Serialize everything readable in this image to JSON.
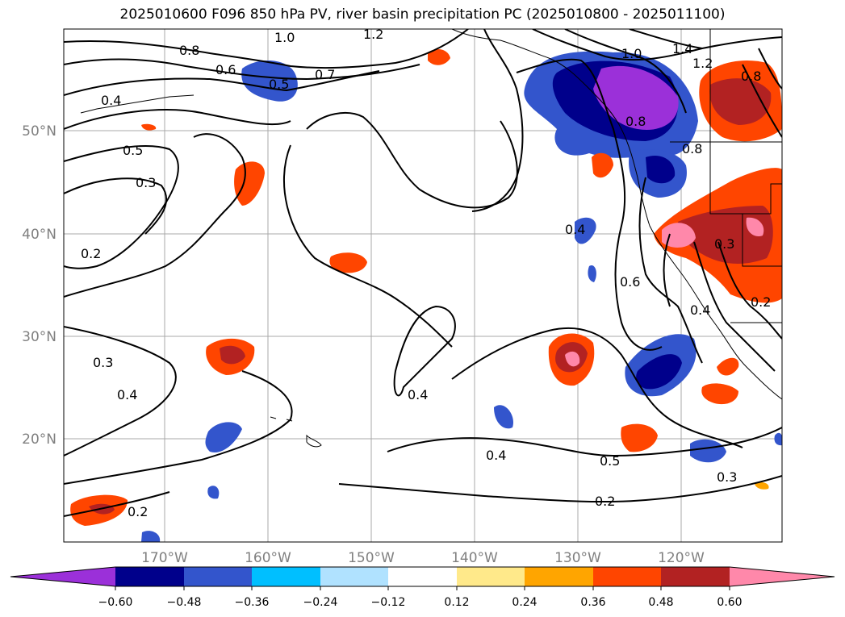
{
  "title": "2025010600 F096 850 hPa PV, river basin precipitation PC (2025010800 - 2025011100)",
  "lon_labels": [
    "170°W",
    "160°W",
    "150°W",
    "140°W",
    "130°W",
    "120°W"
  ],
  "lat_labels": [
    "50°N",
    "40°N",
    "30°N",
    "20°N"
  ],
  "colorbar": {
    "ticks": [
      "−0.60",
      "−0.48",
      "−0.36",
      "−0.24",
      "−0.12",
      "0.12",
      "0.24",
      "0.36",
      "0.48",
      "0.60"
    ],
    "colors": {
      "under": "#9b30d9",
      "neg060": "#00008b",
      "neg048": "#3355cc",
      "neg036": "#00bfff",
      "neg024": "#b0e2ff",
      "zero": "#ffffff",
      "pos012": "#ffe98a",
      "pos024": "#ffa500",
      "pos036": "#ff4500",
      "pos048": "#b22222",
      "over": "#ff88aa"
    }
  },
  "contour_labels": [
    "0.8",
    "0.6",
    "0.7",
    "0.5",
    "0.4",
    "0.5",
    "0.3",
    "0.2",
    "0.3",
    "0.4",
    "0.2",
    "0.4",
    "0.4",
    "0.4",
    "0.5",
    "0.3",
    "0.2",
    "1.0",
    "1.2",
    "1.4",
    "1.2",
    "1.0",
    "0.8",
    "0.8",
    "0.6",
    "0.8",
    "0.3",
    "0.4",
    "0.2"
  ],
  "colors": {
    "contour": "#000000",
    "grid": "#a9a9a9",
    "coast": "#000000"
  }
}
